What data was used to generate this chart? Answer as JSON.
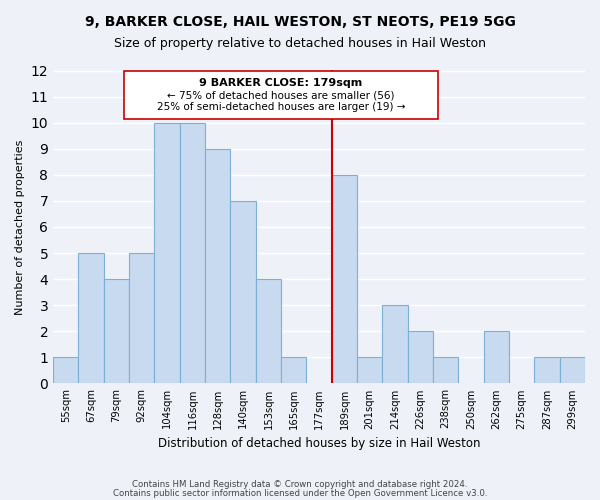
{
  "title": "9, BARKER CLOSE, HAIL WESTON, ST NEOTS, PE19 5GG",
  "subtitle": "Size of property relative to detached houses in Hail Weston",
  "xlabel": "Distribution of detached houses by size in Hail Weston",
  "ylabel": "Number of detached properties",
  "bar_labels": [
    "55sqm",
    "67sqm",
    "79sqm",
    "92sqm",
    "104sqm",
    "116sqm",
    "128sqm",
    "140sqm",
    "153sqm",
    "165sqm",
    "177sqm",
    "189sqm",
    "201sqm",
    "214sqm",
    "226sqm",
    "238sqm",
    "250sqm",
    "262sqm",
    "275sqm",
    "287sqm",
    "299sqm"
  ],
  "bar_heights": [
    1,
    5,
    4,
    5,
    10,
    10,
    9,
    7,
    4,
    1,
    0,
    8,
    1,
    3,
    2,
    1,
    0,
    2,
    0,
    1,
    1
  ],
  "bar_color": "#c8daf0",
  "bar_edgecolor": "#7bafd4",
  "vline_x": 10.5,
  "vline_color": "#cc0000",
  "annotation_title": "9 BARKER CLOSE: 179sqm",
  "annotation_line1": "← 75% of detached houses are smaller (56)",
  "annotation_line2": "25% of semi-detached houses are larger (19) →",
  "annotation_box_edgecolor": "#cc0000",
  "ylim": [
    0,
    12
  ],
  "yticks": [
    0,
    1,
    2,
    3,
    4,
    5,
    6,
    7,
    8,
    9,
    10,
    11,
    12
  ],
  "footer1": "Contains HM Land Registry data © Crown copyright and database right 2024.",
  "footer2": "Contains public sector information licensed under the Open Government Licence v3.0.",
  "bg_color": "#eef2f8"
}
